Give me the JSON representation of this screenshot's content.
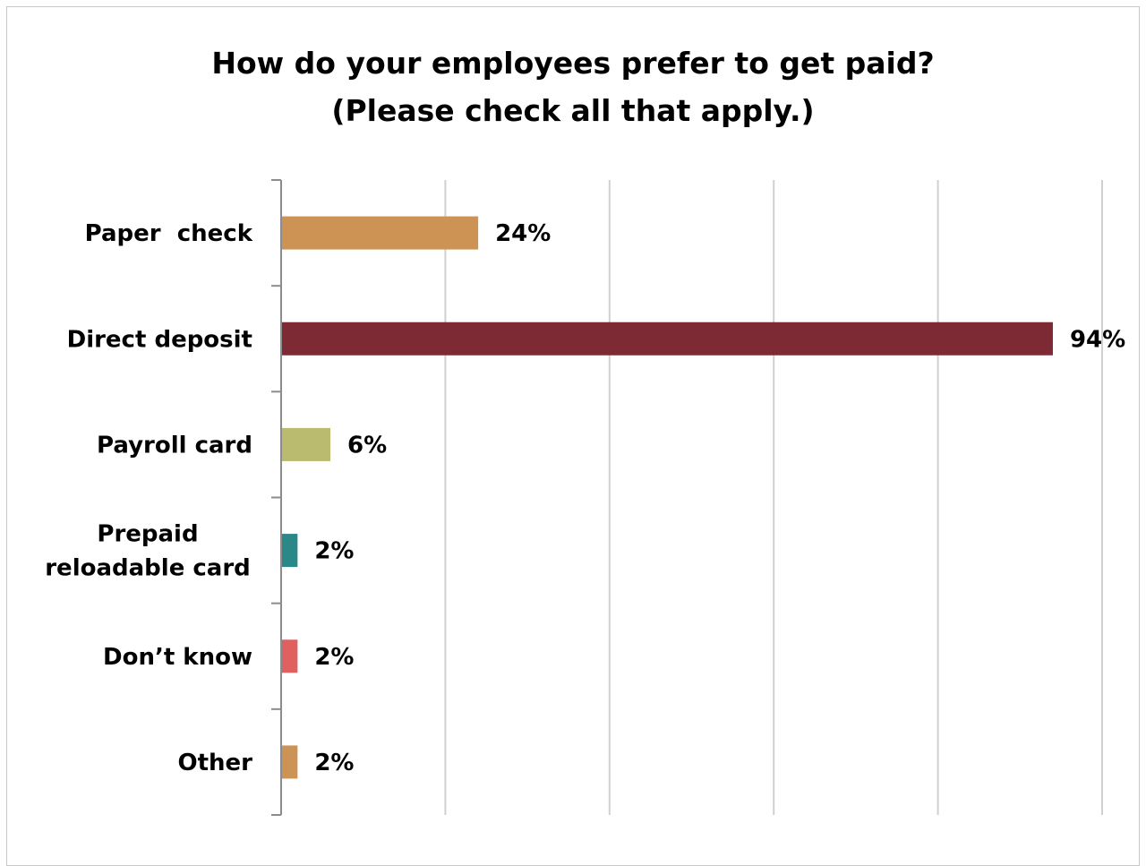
{
  "chart_data": {
    "type": "bar",
    "orientation": "horizontal",
    "title": [
      "How do your employees prefer to get paid?",
      "(Please check all that apply.)"
    ],
    "categories": [
      [
        "Paper  check"
      ],
      [
        "Direct deposit"
      ],
      [
        "Payroll card"
      ],
      [
        "Prepaid",
        "reloadable card"
      ],
      [
        "Don’t know"
      ],
      [
        "Other"
      ]
    ],
    "values": [
      24,
      94,
      6,
      2,
      2,
      2
    ],
    "value_labels": [
      "24%",
      "94%",
      "6%",
      "2%",
      "2%",
      "2%"
    ],
    "colors": [
      "#cc9354",
      "#7e2a35",
      "#bbbb70",
      "#2a8888",
      "#e06060",
      "#cc9354"
    ],
    "xlim": [
      0,
      100
    ],
    "x_gridlines": [
      20,
      40,
      60,
      80,
      100
    ],
    "grid": true,
    "legend": false
  }
}
